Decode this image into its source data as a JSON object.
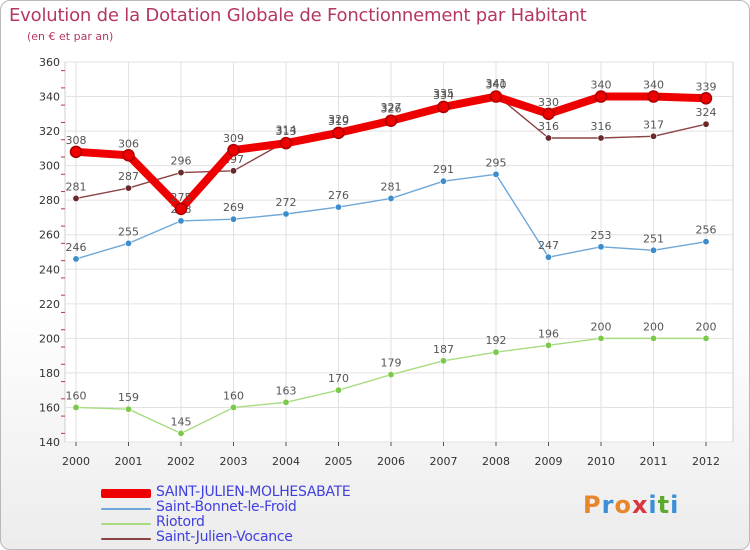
{
  "header": {
    "title": "Evolution de la Dotation Globale de Fonctionnement par Habitant",
    "subtitle": "(en € et par an)"
  },
  "logo": {
    "text": "Proxiti",
    "colors": [
      "#e8862c",
      "#3b8fd6",
      "#e8862c",
      "#d9363e",
      "#3b8fd6",
      "#5aaa2c",
      "#3b8fd6"
    ]
  },
  "legend_order": [
    0,
    1,
    2,
    3
  ],
  "chart_data": {
    "type": "line",
    "title": "Evolution de la Dotation Globale de Fonctionnement par Habitant",
    "subtitle": "(en € et par an)",
    "xlabel": "",
    "ylabel": "",
    "x": [
      "2000",
      "2001",
      "2002",
      "2003",
      "2004",
      "2005",
      "2006",
      "2007",
      "2008",
      "2009",
      "2010",
      "2011",
      "2012"
    ],
    "ylim": [
      140,
      360
    ],
    "yticks": [
      140,
      160,
      180,
      200,
      220,
      240,
      260,
      280,
      300,
      320,
      340,
      360
    ],
    "grid": true,
    "legend": "bottom-left",
    "series": [
      {
        "name": "SAINT-JULIEN-MOLHESABATE",
        "color": "#ee0000",
        "marker_color": "#aa0000",
        "thick": true,
        "values": [
          308,
          306,
          275,
          309,
          313,
          319,
          326,
          334,
          340,
          330,
          340,
          340,
          339
        ],
        "labels": [
          "308",
          "306",
          "275",
          "309",
          "313",
          "319",
          "326",
          "334",
          "340",
          "330",
          "340",
          "340",
          "339"
        ]
      },
      {
        "name": "Saint-Bonnet-le-Froid",
        "color": "#6fa8d8",
        "marker_color": "#3d8ccc",
        "thick": false,
        "values": [
          246,
          255,
          268,
          269,
          272,
          276,
          281,
          291,
          295,
          247,
          253,
          251,
          256
        ],
        "labels": [
          "246",
          "255",
          "268",
          "269",
          "272",
          "276",
          "281",
          "291",
          "295",
          "247",
          "253",
          "251",
          "256"
        ]
      },
      {
        "name": "Riotord",
        "color": "#a8dc80",
        "marker_color": "#7ac94a",
        "thick": false,
        "values": [
          160,
          159,
          145,
          160,
          163,
          170,
          179,
          187,
          192,
          196,
          200,
          200,
          200
        ],
        "labels": [
          "160",
          "159",
          "145",
          "160",
          "163",
          "170",
          "179",
          "187",
          "192",
          "196",
          "200",
          "200",
          "200"
        ]
      },
      {
        "name": "Saint-Julien-Vocance",
        "color": "#8b4444",
        "marker_color": "#6a2828",
        "thick": false,
        "values": [
          281,
          287,
          296,
          297,
          314,
          320,
          327,
          335,
          341,
          316,
          316,
          317,
          324
        ],
        "labels": [
          "281",
          "287",
          "296",
          "297",
          "314",
          "320",
          "327",
          "335",
          "341",
          "316",
          "316",
          "317",
          "324"
        ]
      }
    ]
  }
}
